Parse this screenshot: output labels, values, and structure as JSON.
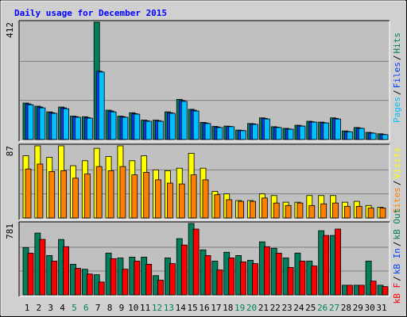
{
  "title": "Daily usage for December 2015",
  "chart_data": [
    {
      "type": "bar",
      "legend_separator": "/",
      "series": [
        {
          "name": "Pages",
          "color": "#00c0ff",
          "values": [
            122,
            111,
            92,
            108,
            78,
            75,
            237,
            97,
            78,
            89,
            64,
            64,
            92,
            134,
            100,
            56,
            42,
            45,
            31,
            53,
            72,
            42,
            36,
            47,
            61,
            58,
            72,
            27,
            39,
            22,
            17
          ]
        },
        {
          "name": "Files",
          "color": "#0040ff",
          "values": [
            125,
            114,
            94,
            111,
            80,
            77,
            240,
            100,
            80,
            91,
            66,
            66,
            94,
            137,
            103,
            58,
            44,
            46,
            32,
            55,
            74,
            43,
            37,
            48,
            62,
            59,
            74,
            28,
            40,
            23,
            18
          ]
        },
        {
          "name": "Hits",
          "color": "#00805c",
          "values": [
            128,
            117,
            97,
            114,
            82,
            80,
            412,
            103,
            82,
            94,
            68,
            68,
            97,
            141,
            106,
            60,
            46,
            47,
            33,
            56,
            76,
            45,
            39,
            50,
            64,
            61,
            76,
            30,
            42,
            25,
            20
          ]
        }
      ],
      "ylim": [
        0,
        412
      ],
      "yticks": [
        412
      ],
      "grid_lines": [
        137.3,
        274.7
      ]
    },
    {
      "type": "bar",
      "legend_separator": "/",
      "series": [
        {
          "name": "Sites",
          "color": "#ff8000",
          "values": [
            59,
            65,
            56,
            57,
            48,
            53,
            62,
            57,
            62,
            52,
            55,
            46,
            42,
            41,
            52,
            46,
            28,
            22,
            20,
            20,
            24,
            18,
            15,
            18,
            15,
            17,
            18,
            14,
            14,
            12,
            12
          ]
        },
        {
          "name": "Visits",
          "color": "#ffff00",
          "values": [
            75,
            87,
            73,
            87,
            63,
            69,
            84,
            74,
            87,
            69,
            75,
            58,
            57,
            60,
            78,
            60,
            32,
            29,
            21,
            21,
            29,
            27,
            19,
            19,
            27,
            27,
            27,
            19,
            20,
            15,
            13
          ]
        }
      ],
      "ylim": [
        0,
        87
      ],
      "yticks": [
        87
      ],
      "grid_lines": [
        29,
        58
      ]
    },
    {
      "type": "bar",
      "legend_separator": "/",
      "series": [
        {
          "name": "kB F",
          "color": "#ff0000",
          "values": [
            456,
            607,
            369,
            527,
            290,
            228,
            140,
            396,
            281,
            369,
            335,
            160,
            342,
            545,
            720,
            430,
            272,
            404,
            360,
            342,
            527,
            456,
            300,
            369,
            316,
            650,
            720,
            105,
            105,
            150,
            90
          ]
        },
        {
          "name": "kB In",
          "color": "#0040ff",
          "values": [
            0,
            0,
            0,
            0,
            0,
            0,
            0,
            0,
            0,
            0,
            0,
            0,
            0,
            0,
            0,
            0,
            0,
            0,
            0,
            0,
            0,
            0,
            0,
            0,
            0,
            0,
            0,
            0,
            0,
            0,
            0
          ]
        },
        {
          "name": "kB Out",
          "color": "#00805c",
          "values": [
            518,
            676,
            430,
            606,
            334,
            280,
            220,
            457,
            404,
            413,
            413,
            210,
            404,
            615,
            781,
            492,
            369,
            466,
            430,
            378,
            580,
            510,
            404,
            457,
            369,
            702,
            650,
            105,
            105,
            369,
            105
          ]
        }
      ],
      "ylim": [
        0,
        781
      ],
      "yticks": [
        781
      ],
      "grid_lines": [
        260.3,
        520.7
      ],
      "categories": [
        "1",
        "2",
        "3",
        "4",
        "5",
        "6",
        "7",
        "8",
        "9",
        "10",
        "11",
        "12",
        "13",
        "14",
        "15",
        "16",
        "17",
        "18",
        "19",
        "20",
        "21",
        "22",
        "23",
        "24",
        "25",
        "26",
        "27",
        "28",
        "29",
        "30",
        "31"
      ],
      "x_label_colors": [
        "#000000",
        "#000000",
        "#000000",
        "#000000",
        "#00805c",
        "#00805c",
        "#000000",
        "#000000",
        "#000000",
        "#000000",
        "#000000",
        "#00805c",
        "#00805c",
        "#000000",
        "#000000",
        "#000000",
        "#000000",
        "#000000",
        "#00805c",
        "#00805c",
        "#000000",
        "#000000",
        "#000000",
        "#000000",
        "#000000",
        "#00805c",
        "#00805c",
        "#000000",
        "#000000",
        "#000000",
        "#000000"
      ]
    }
  ]
}
